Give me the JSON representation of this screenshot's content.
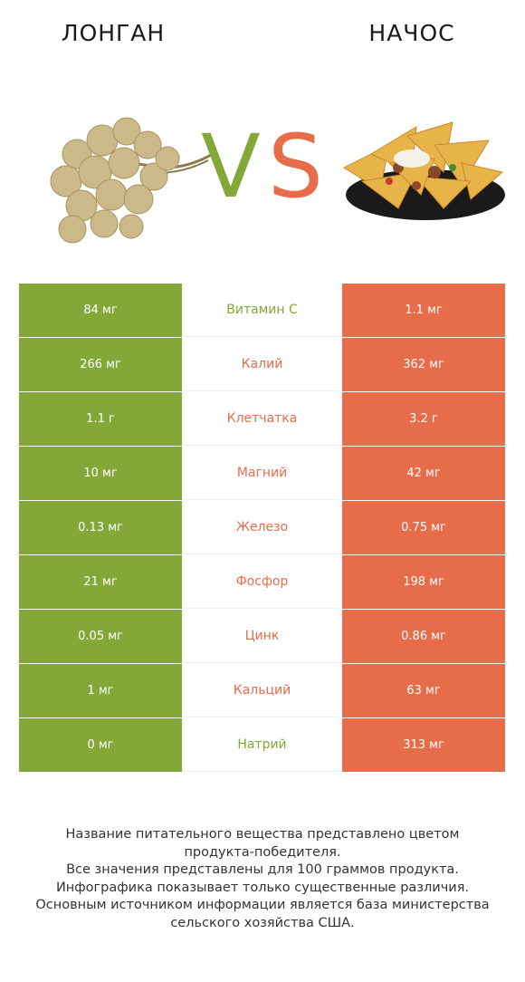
{
  "colors": {
    "left": "#84a838",
    "right": "#e76c4a"
  },
  "header": {
    "left_food": "ЛОНГАН",
    "right_food": "НАЧОС",
    "vs_v": "V",
    "vs_s": "S"
  },
  "icons": {
    "left": "longan-fruit-image",
    "right": "nachos-image"
  },
  "chart_data": {
    "type": "table",
    "columns": [
      "ЛОНГАН",
      "",
      "НАЧОС"
    ],
    "rows": [
      {
        "nutrient": "Витамин C",
        "left": "84 мг",
        "right": "1.1 мг",
        "winner": "left"
      },
      {
        "nutrient": "Калий",
        "left": "266 мг",
        "right": "362 мг",
        "winner": "right"
      },
      {
        "nutrient": "Клетчатка",
        "left": "1.1 г",
        "right": "3.2 г",
        "winner": "right"
      },
      {
        "nutrient": "Магний",
        "left": "10 мг",
        "right": "42 мг",
        "winner": "right"
      },
      {
        "nutrient": "Железо",
        "left": "0.13 мг",
        "right": "0.75 мг",
        "winner": "right"
      },
      {
        "nutrient": "Фосфор",
        "left": "21 мг",
        "right": "198 мг",
        "winner": "right"
      },
      {
        "nutrient": "Цинк",
        "left": "0.05 мг",
        "right": "0.86 мг",
        "winner": "right"
      },
      {
        "nutrient": "Кальций",
        "left": "1 мг",
        "right": "63 мг",
        "winner": "right"
      },
      {
        "nutrient": "Натрий",
        "left": "0 мг",
        "right": "313 мг",
        "winner": "left"
      }
    ]
  },
  "footnote": {
    "lines": [
      "Название питательного вещества представлено цветом",
      "продукта-победителя.",
      "Все значения представлены для 100 граммов продукта.",
      "Инфографика показывает только существенные различия.",
      "Основным источником информации является база министерства",
      "сельского хозяйства США."
    ]
  }
}
